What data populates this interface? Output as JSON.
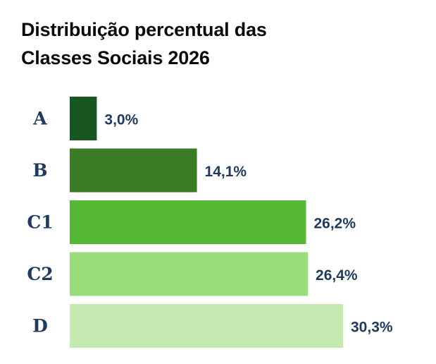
{
  "chart_data": {
    "type": "bar",
    "orientation": "horizontal",
    "title_lines": [
      "Distribuição percentual das",
      "Classes Sociais 2026"
    ],
    "categories": [
      "A",
      "B",
      "C1",
      "C2",
      "D"
    ],
    "values": [
      3.0,
      14.1,
      26.2,
      26.4,
      30.3
    ],
    "value_labels": [
      "3,0%",
      "14,1%",
      "26,2%",
      "26,4%",
      "30,3%"
    ],
    "colors": [
      "#17571f",
      "#3a7d26",
      "#56b935",
      "#98dc7b",
      "#c4eab1"
    ],
    "label_color": "#1f3a5f",
    "xlim": [
      0,
      30.3
    ],
    "xlabel": "",
    "ylabel": "",
    "grid": false,
    "legend": "none"
  }
}
